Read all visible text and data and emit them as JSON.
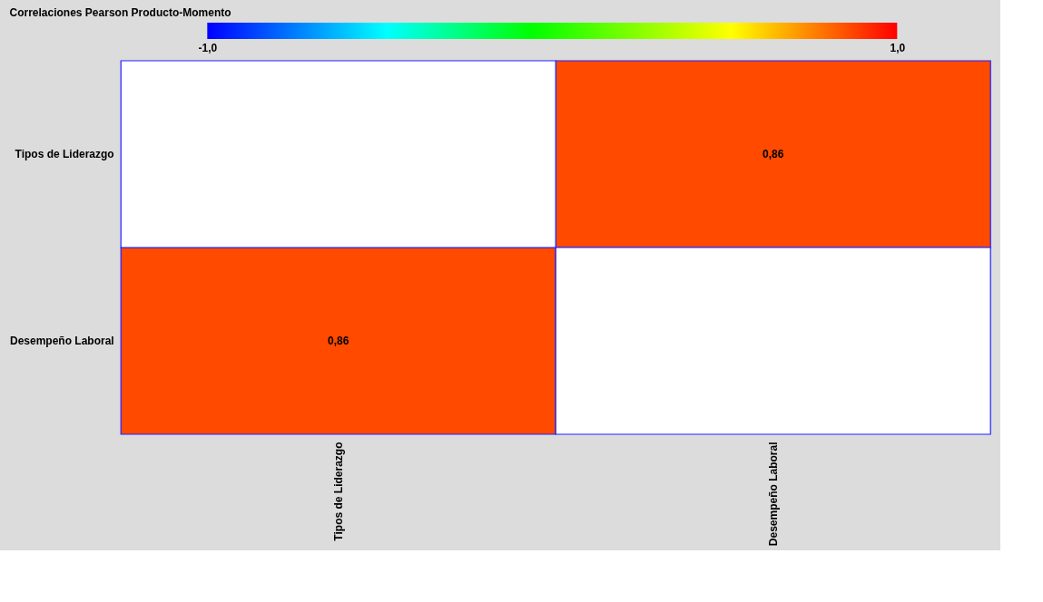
{
  "chart_data": {
    "type": "heatmap",
    "title": "Correlaciones Pearson Producto-Momento",
    "categories": [
      "Tipos de Liderazgo",
      "Desempeño Laboral"
    ],
    "y_categories": [
      "Tipos de Liderazgo",
      "Desempeño Laboral"
    ],
    "cells": [
      [
        null,
        0.86
      ],
      [
        0.86,
        null
      ]
    ],
    "cell_labels": [
      [
        null,
        "0,86"
      ],
      [
        "0,86",
        null
      ]
    ],
    "clim": [
      -1,
      1
    ],
    "cticks": [
      {
        "value": -1,
        "label": "-1,0"
      },
      {
        "value": 1,
        "label": "1,0"
      }
    ]
  }
}
